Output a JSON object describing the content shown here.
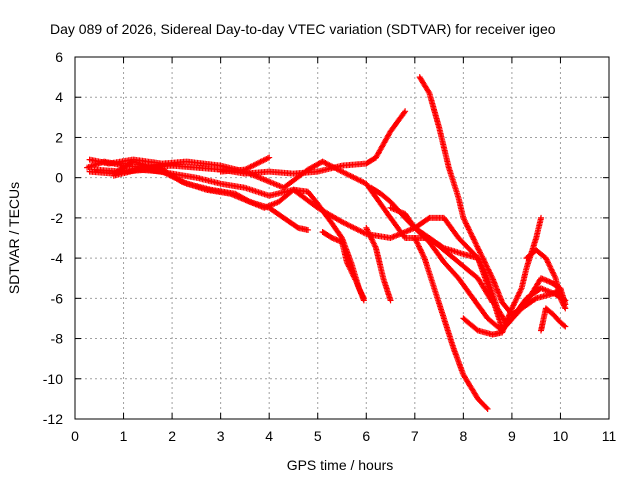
{
  "chart_data": {
    "type": "scatter",
    "title": "Day 089 of 2026, Sidereal Day-to-day VTEC variation (SDTVAR) for receiver igeo",
    "xlabel": "GPS time / hours",
    "ylabel": "SDTVAR / TECUs",
    "xlim": [
      0,
      11
    ],
    "ylim": [
      -12,
      6
    ],
    "xticks": [
      0,
      1,
      2,
      3,
      4,
      5,
      6,
      7,
      8,
      9,
      10,
      11
    ],
    "yticks": [
      -12,
      -10,
      -8,
      -6,
      -4,
      -2,
      0,
      2,
      4,
      6
    ],
    "grid": true,
    "marker": "plus",
    "color": "#ff0000",
    "series": [
      {
        "name": "track-1",
        "points": [
          [
            0.25,
            0.5
          ],
          [
            0.6,
            0.8
          ],
          [
            1.0,
            0.6
          ],
          [
            1.5,
            0.5
          ],
          [
            2.0,
            0.6
          ],
          [
            2.5,
            0.5
          ],
          [
            3.0,
            0.4
          ],
          [
            3.5,
            0.2
          ],
          [
            4.0,
            0.3
          ],
          [
            4.5,
            0.2
          ],
          [
            5.0,
            0.3
          ],
          [
            5.5,
            0.6
          ],
          [
            6.0,
            0.7
          ],
          [
            6.2,
            1.0
          ],
          [
            6.5,
            2.3
          ],
          [
            6.8,
            3.3
          ]
        ]
      },
      {
        "name": "track-2",
        "points": [
          [
            0.3,
            0.9
          ],
          [
            0.7,
            0.7
          ],
          [
            1.2,
            0.9
          ],
          [
            1.8,
            0.7
          ],
          [
            2.3,
            0.8
          ],
          [
            3.0,
            0.6
          ],
          [
            3.5,
            0.3
          ],
          [
            4.0,
            -0.2
          ],
          [
            4.3,
            -0.5
          ],
          [
            4.8,
            0.4
          ],
          [
            5.1,
            0.8
          ],
          [
            5.5,
            0.3
          ],
          [
            6.0,
            -0.3
          ],
          [
            6.5,
            -2.0
          ],
          [
            6.8,
            -3.0
          ],
          [
            7.3,
            -3.0
          ],
          [
            7.8,
            -4.0
          ],
          [
            8.3,
            -5.0
          ],
          [
            8.6,
            -6.2
          ]
        ]
      },
      {
        "name": "track-3",
        "points": [
          [
            0.3,
            0.3
          ],
          [
            0.8,
            0.2
          ],
          [
            1.2,
            0.8
          ],
          [
            1.8,
            0.4
          ],
          [
            2.2,
            -0.2
          ],
          [
            2.7,
            -0.6
          ],
          [
            3.2,
            -0.8
          ],
          [
            3.6,
            -1.2
          ],
          [
            4.0,
            -1.5
          ],
          [
            4.3,
            -2.0
          ],
          [
            4.6,
            -2.5
          ],
          [
            4.8,
            -2.6
          ]
        ]
      },
      {
        "name": "track-4",
        "points": [
          [
            0.4,
            0.4
          ],
          [
            1.0,
            0.3
          ],
          [
            1.5,
            0.4
          ],
          [
            2.0,
            0.2
          ],
          [
            2.5,
            0.0
          ],
          [
            3.0,
            -0.3
          ],
          [
            3.5,
            -0.5
          ],
          [
            4.0,
            -0.9
          ],
          [
            4.5,
            -0.6
          ],
          [
            5.0,
            -1.5
          ],
          [
            5.5,
            -2.2
          ],
          [
            6.0,
            -2.8
          ],
          [
            6.5,
            -3.0
          ],
          [
            7.0,
            -2.5
          ],
          [
            7.3,
            -2.0
          ],
          [
            7.6,
            -2.0
          ],
          [
            7.9,
            -3.0
          ],
          [
            8.3,
            -4.0
          ],
          [
            8.6,
            -6.0
          ],
          [
            8.8,
            -7.5
          ]
        ]
      },
      {
        "name": "track-5",
        "points": [
          [
            0.8,
            0.1
          ],
          [
            1.3,
            0.4
          ],
          [
            1.8,
            0.3
          ],
          [
            2.3,
            -0.3
          ],
          [
            2.8,
            -0.6
          ],
          [
            3.3,
            -0.8
          ],
          [
            3.6,
            -1.2
          ],
          [
            3.9,
            -1.5
          ],
          [
            4.2,
            -1.2
          ],
          [
            4.5,
            -0.6
          ],
          [
            4.8,
            -0.7
          ],
          [
            5.0,
            -1.3
          ],
          [
            5.3,
            -2.3
          ],
          [
            5.5,
            -3.0
          ],
          [
            5.7,
            -4.3
          ],
          [
            5.85,
            -5.5
          ],
          [
            5.95,
            -6.0
          ]
        ]
      },
      {
        "name": "track-6",
        "points": [
          [
            3.0,
            0.3
          ],
          [
            3.5,
            0.4
          ],
          [
            4.0,
            1.0
          ]
        ]
      },
      {
        "name": "track-7",
        "points": [
          [
            5.1,
            -2.7
          ],
          [
            5.3,
            -3.0
          ],
          [
            5.5,
            -3.2
          ],
          [
            5.6,
            -4.2
          ],
          [
            5.8,
            -5.2
          ],
          [
            5.95,
            -6.1
          ]
        ]
      },
      {
        "name": "track-8",
        "points": [
          [
            6.0,
            -2.5
          ],
          [
            6.2,
            -3.5
          ],
          [
            6.35,
            -5.0
          ],
          [
            6.5,
            -6.1
          ]
        ]
      },
      {
        "name": "track-9",
        "points": [
          [
            6.1,
            -0.5
          ],
          [
            6.3,
            -0.8
          ],
          [
            6.5,
            -1.2
          ],
          [
            6.8,
            -2.0
          ],
          [
            7.0,
            -2.5
          ],
          [
            7.3,
            -3.2
          ],
          [
            7.6,
            -4.2
          ],
          [
            7.9,
            -5.0
          ],
          [
            8.2,
            -6.0
          ],
          [
            8.5,
            -7.0
          ],
          [
            8.8,
            -7.6
          ],
          [
            9.0,
            -7.0
          ],
          [
            9.3,
            -6.0
          ],
          [
            9.6,
            -5.5
          ],
          [
            9.9,
            -5.8
          ],
          [
            10.1,
            -6.1
          ]
        ]
      },
      {
        "name": "track-10",
        "points": [
          [
            6.5,
            -1.5
          ],
          [
            6.8,
            -1.8
          ],
          [
            7.0,
            -2.5
          ],
          [
            7.3,
            -3.0
          ],
          [
            7.6,
            -3.5
          ],
          [
            8.0,
            -3.8
          ],
          [
            8.3,
            -4.0
          ],
          [
            8.5,
            -5.0
          ],
          [
            8.7,
            -6.5
          ],
          [
            8.9,
            -7.3
          ],
          [
            9.2,
            -6.5
          ],
          [
            9.5,
            -6.0
          ],
          [
            9.8,
            -5.8
          ],
          [
            10.0,
            -5.6
          ]
        ]
      },
      {
        "name": "track-11",
        "points": [
          [
            7.1,
            5.0
          ],
          [
            7.3,
            4.2
          ],
          [
            7.5,
            2.5
          ],
          [
            7.7,
            0.5
          ],
          [
            7.9,
            -1.0
          ],
          [
            8.0,
            -2.0
          ],
          [
            8.2,
            -3.0
          ],
          [
            8.4,
            -4.0
          ],
          [
            8.6,
            -5.0
          ],
          [
            8.8,
            -6.2
          ],
          [
            9.0,
            -6.8
          ],
          [
            9.2,
            -6.5
          ],
          [
            9.4,
            -5.8
          ],
          [
            9.6,
            -5.0
          ],
          [
            9.8,
            -5.2
          ],
          [
            10.0,
            -5.5
          ],
          [
            10.1,
            -6.3
          ]
        ]
      },
      {
        "name": "track-12",
        "points": [
          [
            7.0,
            -3.0
          ],
          [
            7.2,
            -4.0
          ],
          [
            7.4,
            -5.5
          ],
          [
            7.6,
            -7.0
          ],
          [
            7.8,
            -8.5
          ],
          [
            8.0,
            -9.8
          ],
          [
            8.3,
            -11.0
          ],
          [
            8.5,
            -11.5
          ]
        ]
      },
      {
        "name": "track-13",
        "points": [
          [
            8.0,
            -7.0
          ],
          [
            8.3,
            -7.6
          ],
          [
            8.6,
            -7.8
          ],
          [
            8.8,
            -7.7
          ],
          [
            9.0,
            -6.5
          ],
          [
            9.2,
            -5.5
          ],
          [
            9.3,
            -4.5
          ],
          [
            9.5,
            -3.0
          ],
          [
            9.6,
            -2.0
          ]
        ]
      },
      {
        "name": "track-14",
        "points": [
          [
            9.3,
            -4.0
          ],
          [
            9.5,
            -3.6
          ],
          [
            9.7,
            -4.0
          ],
          [
            9.9,
            -5.0
          ],
          [
            10.0,
            -6.0
          ],
          [
            10.1,
            -6.5
          ]
        ]
      },
      {
        "name": "track-15",
        "points": [
          [
            9.6,
            -7.6
          ],
          [
            9.7,
            -6.5
          ],
          [
            9.85,
            -6.8
          ],
          [
            10.0,
            -7.2
          ],
          [
            10.1,
            -7.4
          ]
        ]
      }
    ]
  }
}
